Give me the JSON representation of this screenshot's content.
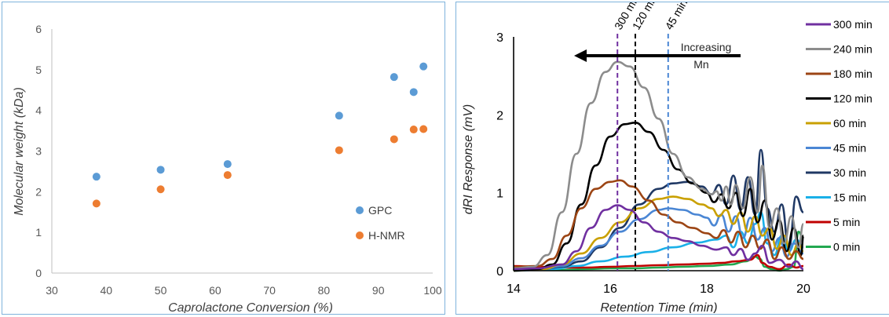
{
  "chart_data": [
    {
      "type": "scatter",
      "xlabel": "Caprolactone Conversion (%)",
      "ylabel": "Molecular weight (kDa)",
      "xlim": [
        30,
        100
      ],
      "ylim": [
        0,
        6
      ],
      "xticks": [
        "30",
        "40",
        "50",
        "60",
        "70",
        "80",
        "90",
        "100"
      ],
      "yticks": [
        "0",
        "1",
        "2",
        "3",
        "4",
        "5",
        "6"
      ],
      "grid": false,
      "legend_position": "right",
      "series": [
        {
          "name": "GPC",
          "color": "#5b9bd5",
          "x": [
            38.2,
            50.0,
            62.3,
            82.8,
            92.9,
            96.5,
            98.3
          ],
          "y": [
            2.37,
            2.54,
            2.68,
            3.87,
            4.82,
            4.45,
            5.08
          ]
        },
        {
          "name": "H-NMR",
          "color": "#ed7d31",
          "x": [
            38.2,
            50.0,
            62.3,
            82.8,
            92.9,
            96.5,
            98.3
          ],
          "y": [
            1.71,
            2.06,
            2.41,
            3.02,
            3.29,
            3.53,
            3.54
          ]
        }
      ]
    },
    {
      "type": "line",
      "xlabel": "Retention Time (min)",
      "ylabel": "dRI Response (mV)",
      "xlim": [
        14,
        20
      ],
      "ylim": [
        0,
        3
      ],
      "xticks": [
        "14",
        "16",
        "18",
        "20"
      ],
      "yticks": [
        "0",
        "1",
        "2",
        "3"
      ],
      "grid": false,
      "legend_position": "right",
      "annotations": {
        "arrow_text_1": "Increasing",
        "arrow_text_2": "Mn",
        "marker_lines": [
          {
            "label": "300 min",
            "x": 16.15,
            "color": "#7030a0"
          },
          {
            "label": "120 min",
            "x": 16.52,
            "color": "#000000"
          },
          {
            "label": "45 min",
            "x": 17.2,
            "color": "#4a86d4"
          }
        ]
      },
      "series": [
        {
          "name": "300 min",
          "color": "#7030a0",
          "points": [
            [
              14,
              0.02
            ],
            [
              14.5,
              0.03
            ],
            [
              15,
              0.08
            ],
            [
              15.3,
              0.25
            ],
            [
              15.6,
              0.55
            ],
            [
              15.9,
              0.78
            ],
            [
              16.15,
              0.84
            ],
            [
              16.4,
              0.78
            ],
            [
              16.7,
              0.62
            ],
            [
              17,
              0.5
            ],
            [
              17.3,
              0.42
            ],
            [
              17.6,
              0.38
            ],
            [
              17.9,
              0.32
            ],
            [
              18.2,
              0.27
            ],
            [
              18.4,
              0.3
            ],
            [
              18.55,
              0.2
            ],
            [
              18.7,
              0.28
            ],
            [
              18.85,
              0.14
            ],
            [
              19,
              0.22
            ],
            [
              19.15,
              0.32
            ],
            [
              19.3,
              0.1
            ],
            [
              19.5,
              0.14
            ],
            [
              19.7,
              0.05
            ],
            [
              19.85,
              0.12
            ],
            [
              20,
              0.02
            ]
          ]
        },
        {
          "name": "240 min",
          "color": "#8c8c8c",
          "points": [
            [
              14,
              0.03
            ],
            [
              14.4,
              0.05
            ],
            [
              14.7,
              0.2
            ],
            [
              15,
              0.75
            ],
            [
              15.3,
              1.5
            ],
            [
              15.6,
              2.15
            ],
            [
              15.9,
              2.55
            ],
            [
              16.15,
              2.68
            ],
            [
              16.4,
              2.62
            ],
            [
              16.7,
              2.35
            ],
            [
              17,
              1.95
            ],
            [
              17.3,
              1.5
            ],
            [
              17.6,
              1.2
            ],
            [
              17.9,
              1.05
            ],
            [
              18.1,
              0.98
            ],
            [
              18.2,
              1.02
            ],
            [
              18.3,
              0.9
            ],
            [
              18.4,
              1.08
            ],
            [
              18.5,
              0.85
            ],
            [
              18.6,
              1.1
            ],
            [
              18.75,
              0.8
            ],
            [
              18.9,
              1.2
            ],
            [
              19.05,
              0.75
            ],
            [
              19.15,
              1.35
            ],
            [
              19.3,
              0.55
            ],
            [
              19.45,
              0.8
            ],
            [
              19.6,
              0.35
            ],
            [
              19.75,
              0.7
            ],
            [
              19.9,
              0.3
            ],
            [
              20,
              0.6
            ]
          ]
        },
        {
          "name": "180 min",
          "color": "#9c4514",
          "points": [
            [
              14,
              0.05
            ],
            [
              14.5,
              0.06
            ],
            [
              14.8,
              0.15
            ],
            [
              15.1,
              0.45
            ],
            [
              15.4,
              0.8
            ],
            [
              15.7,
              1.05
            ],
            [
              16,
              1.14
            ],
            [
              16.2,
              1.16
            ],
            [
              16.45,
              1.08
            ],
            [
              16.8,
              0.9
            ],
            [
              17.1,
              0.72
            ],
            [
              17.4,
              0.62
            ],
            [
              17.7,
              0.55
            ],
            [
              18,
              0.48
            ],
            [
              18.2,
              0.42
            ],
            [
              18.35,
              0.52
            ],
            [
              18.5,
              0.36
            ],
            [
              18.65,
              0.5
            ],
            [
              18.8,
              0.3
            ],
            [
              18.95,
              0.45
            ],
            [
              19.1,
              0.28
            ],
            [
              19.25,
              0.4
            ],
            [
              19.4,
              0.15
            ],
            [
              19.55,
              0.3
            ],
            [
              19.7,
              0.15
            ],
            [
              19.85,
              0.25
            ],
            [
              20,
              0.15
            ]
          ]
        },
        {
          "name": "120 min",
          "color": "#000000",
          "points": [
            [
              14,
              0.0
            ],
            [
              14.5,
              0.02
            ],
            [
              14.8,
              0.08
            ],
            [
              15.1,
              0.35
            ],
            [
              15.4,
              0.85
            ],
            [
              15.7,
              1.35
            ],
            [
              16,
              1.72
            ],
            [
              16.3,
              1.88
            ],
            [
              16.52,
              1.9
            ],
            [
              16.8,
              1.78
            ],
            [
              17.1,
              1.55
            ],
            [
              17.4,
              1.3
            ],
            [
              17.7,
              1.12
            ],
            [
              18,
              1.0
            ],
            [
              18.15,
              0.88
            ],
            [
              18.3,
              0.98
            ],
            [
              18.45,
              0.8
            ],
            [
              18.6,
              1.0
            ],
            [
              18.75,
              0.7
            ],
            [
              18.9,
              1.05
            ],
            [
              19.05,
              0.62
            ],
            [
              19.2,
              0.9
            ],
            [
              19.35,
              0.4
            ],
            [
              19.5,
              0.65
            ],
            [
              19.65,
              0.25
            ],
            [
              19.8,
              0.55
            ],
            [
              19.95,
              0.2
            ],
            [
              20,
              0.45
            ]
          ]
        },
        {
          "name": "60 min",
          "color": "#c9a000",
          "points": [
            [
              14,
              0.0
            ],
            [
              14.6,
              0.02
            ],
            [
              15,
              0.08
            ],
            [
              15.4,
              0.22
            ],
            [
              15.8,
              0.42
            ],
            [
              16.2,
              0.62
            ],
            [
              16.6,
              0.8
            ],
            [
              17,
              0.92
            ],
            [
              17.3,
              0.95
            ],
            [
              17.6,
              0.92
            ],
            [
              17.9,
              0.85
            ],
            [
              18.1,
              0.8
            ],
            [
              18.25,
              0.7
            ],
            [
              18.4,
              0.78
            ],
            [
              18.55,
              0.6
            ],
            [
              18.7,
              0.75
            ],
            [
              18.85,
              0.5
            ],
            [
              19,
              0.7
            ],
            [
              19.15,
              0.45
            ],
            [
              19.3,
              0.55
            ],
            [
              19.45,
              0.28
            ],
            [
              19.6,
              0.45
            ],
            [
              19.75,
              0.2
            ],
            [
              19.9,
              0.35
            ],
            [
              20,
              0.25
            ]
          ]
        },
        {
          "name": "45 min",
          "color": "#4a86d4",
          "points": [
            [
              14,
              0.0
            ],
            [
              14.6,
              0.02
            ],
            [
              15,
              0.06
            ],
            [
              15.4,
              0.16
            ],
            [
              15.8,
              0.32
            ],
            [
              16.2,
              0.5
            ],
            [
              16.6,
              0.66
            ],
            [
              17,
              0.78
            ],
            [
              17.2,
              0.8
            ],
            [
              17.5,
              0.78
            ],
            [
              17.8,
              0.72
            ],
            [
              18,
              0.68
            ],
            [
              18.15,
              0.58
            ],
            [
              18.3,
              0.72
            ],
            [
              18.45,
              0.5
            ],
            [
              18.6,
              0.7
            ],
            [
              18.75,
              0.42
            ],
            [
              18.9,
              0.68
            ],
            [
              19.05,
              0.4
            ],
            [
              19.2,
              0.55
            ],
            [
              19.35,
              0.25
            ],
            [
              19.5,
              0.42
            ],
            [
              19.65,
              0.18
            ],
            [
              19.8,
              0.35
            ],
            [
              20,
              0.22
            ]
          ]
        },
        {
          "name": "30 min",
          "color": "#1f3864",
          "points": [
            [
              14,
              0.0
            ],
            [
              14.6,
              0.02
            ],
            [
              15,
              0.05
            ],
            [
              15.4,
              0.12
            ],
            [
              15.8,
              0.3
            ],
            [
              16.2,
              0.55
            ],
            [
              16.6,
              0.85
            ],
            [
              17,
              1.05
            ],
            [
              17.3,
              1.12
            ],
            [
              17.6,
              1.14
            ],
            [
              17.9,
              1.08
            ],
            [
              18.1,
              0.98
            ],
            [
              18.25,
              1.1
            ],
            [
              18.4,
              0.85
            ],
            [
              18.55,
              1.22
            ],
            [
              18.7,
              0.78
            ],
            [
              18.85,
              1.2
            ],
            [
              19,
              0.72
            ],
            [
              19.12,
              1.55
            ],
            [
              19.25,
              0.8
            ],
            [
              19.4,
              0.5
            ],
            [
              19.55,
              0.85
            ],
            [
              19.7,
              0.3
            ],
            [
              19.85,
              0.95
            ],
            [
              20,
              0.75
            ]
          ]
        },
        {
          "name": "15 min",
          "color": "#1ab0e8",
          "points": [
            [
              14,
              0.0
            ],
            [
              14.8,
              0.02
            ],
            [
              15.3,
              0.06
            ],
            [
              15.8,
              0.12
            ],
            [
              16.3,
              0.18
            ],
            [
              16.8,
              0.24
            ],
            [
              17.3,
              0.3
            ],
            [
              17.8,
              0.36
            ],
            [
              18.2,
              0.4
            ],
            [
              18.4,
              0.45
            ],
            [
              18.55,
              0.3
            ],
            [
              18.7,
              0.5
            ],
            [
              18.85,
              0.35
            ],
            [
              19,
              0.6
            ],
            [
              19.12,
              0.75
            ],
            [
              19.25,
              0.35
            ],
            [
              19.4,
              0.2
            ],
            [
              19.55,
              0.45
            ],
            [
              19.7,
              0.25
            ],
            [
              19.85,
              0.4
            ],
            [
              20,
              0.3
            ]
          ]
        },
        {
          "name": "5 min",
          "color": "#c00000",
          "points": [
            [
              14,
              0.06
            ],
            [
              14.5,
              0.05
            ],
            [
              15,
              0.04
            ],
            [
              15.5,
              0.04
            ],
            [
              16,
              0.05
            ],
            [
              16.5,
              0.06
            ],
            [
              17,
              0.07
            ],
            [
              17.5,
              0.08
            ],
            [
              18,
              0.09
            ],
            [
              18.3,
              0.1
            ],
            [
              18.6,
              0.12
            ],
            [
              18.9,
              0.14
            ],
            [
              19.05,
              0.2
            ],
            [
              19.15,
              0.1
            ],
            [
              19.3,
              0.05
            ],
            [
              19.5,
              0.02
            ],
            [
              19.7,
              0.08
            ],
            [
              19.85,
              0.04
            ],
            [
              20,
              0.06
            ]
          ]
        },
        {
          "name": "0 min",
          "color": "#22a850",
          "points": [
            [
              14,
              0.02
            ],
            [
              14.5,
              0.02
            ],
            [
              15,
              0.01
            ],
            [
              15.5,
              0.02
            ],
            [
              16,
              0.03
            ],
            [
              16.5,
              0.03
            ],
            [
              17,
              0.04
            ],
            [
              17.5,
              0.05
            ],
            [
              18,
              0.06
            ],
            [
              18.5,
              0.08
            ],
            [
              18.8,
              0.12
            ],
            [
              19,
              0.18
            ],
            [
              19.1,
              0.15
            ],
            [
              19.2,
              0.05
            ],
            [
              19.35,
              0.02
            ],
            [
              19.5,
              0.0
            ],
            [
              19.65,
              0.02
            ],
            [
              19.8,
              0.05
            ],
            [
              19.9,
              0.5
            ],
            [
              20,
              0.4
            ]
          ]
        }
      ]
    }
  ]
}
